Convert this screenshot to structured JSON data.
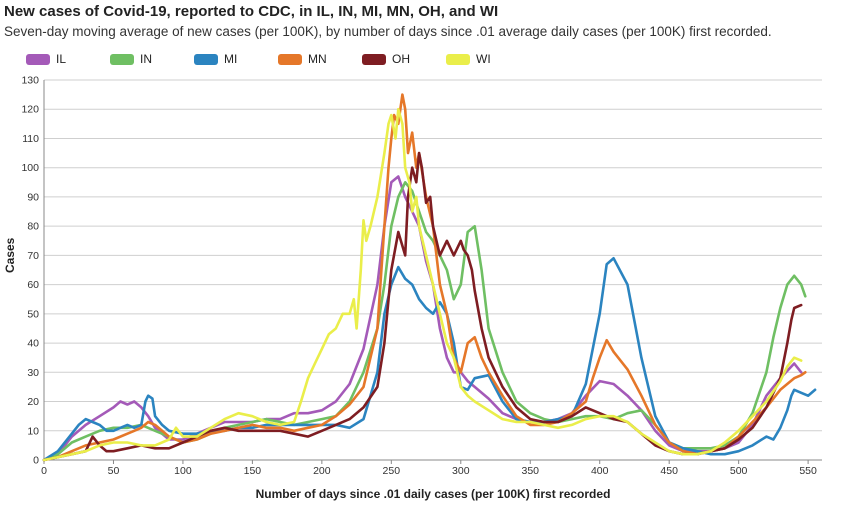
{
  "chart_data": {
    "type": "line",
    "title": "New cases of Covid-19, reported to CDC, in IL, IN, MI, MN, OH, and WI",
    "subtitle": "Seven-day moving average of new cases (per 100K), by number of days since .01 average daily cases (per 100K) first recorded.",
    "xlabel": "Number of days since .01 daily cases (per 100K) first recorded",
    "ylabel": "Cases",
    "xlim": [
      0,
      560
    ],
    "ylim": [
      0,
      130
    ],
    "xticks": [
      0,
      50,
      100,
      150,
      200,
      250,
      300,
      350,
      400,
      450,
      500,
      550
    ],
    "yticks": [
      0,
      10,
      20,
      30,
      40,
      50,
      60,
      70,
      80,
      90,
      100,
      110,
      120,
      130
    ],
    "grid": "horizontal",
    "legend_position": "top-left",
    "series": [
      {
        "name": "IL",
        "color": "#a45ab8",
        "x": [
          0,
          10,
          20,
          30,
          40,
          50,
          55,
          60,
          65,
          70,
          75,
          80,
          85,
          90,
          100,
          110,
          120,
          130,
          140,
          150,
          160,
          170,
          180,
          190,
          200,
          210,
          220,
          230,
          240,
          245,
          250,
          255,
          260,
          265,
          270,
          275,
          280,
          285,
          290,
          295,
          300,
          305,
          310,
          320,
          330,
          340,
          350,
          360,
          370,
          380,
          390,
          400,
          410,
          420,
          430,
          440,
          450,
          460,
          470,
          480,
          490,
          500,
          510,
          520,
          530,
          540,
          545
        ],
        "y": [
          0,
          2,
          8,
          12,
          15,
          18,
          20,
          19,
          20,
          18,
          15,
          11,
          9,
          7,
          7,
          9,
          11,
          13,
          13,
          13,
          14,
          14,
          16,
          16,
          17,
          20,
          26,
          38,
          60,
          80,
          95,
          97,
          90,
          85,
          80,
          68,
          60,
          45,
          35,
          30,
          30,
          27,
          25,
          21,
          16,
          14,
          13,
          13,
          14,
          16,
          22,
          27,
          26,
          22,
          17,
          10,
          5,
          3,
          3,
          3,
          4,
          6,
          12,
          22,
          28,
          33,
          30
        ]
      },
      {
        "name": "IN",
        "color": "#6fbf63",
        "x": [
          0,
          10,
          20,
          30,
          40,
          50,
          60,
          70,
          80,
          90,
          100,
          110,
          120,
          130,
          140,
          150,
          160,
          170,
          180,
          190,
          200,
          210,
          220,
          230,
          240,
          245,
          250,
          255,
          260,
          265,
          270,
          275,
          280,
          285,
          290,
          295,
          300,
          305,
          310,
          315,
          320,
          330,
          340,
          350,
          360,
          370,
          380,
          390,
          400,
          410,
          420,
          430,
          440,
          450,
          460,
          470,
          480,
          490,
          500,
          510,
          520,
          525,
          530,
          535,
          540,
          545,
          548
        ],
        "y": [
          0,
          2,
          6,
          8,
          10,
          11,
          11,
          12,
          10,
          8,
          6,
          7,
          9,
          11,
          12,
          13,
          14,
          13,
          12,
          13,
          14,
          15,
          20,
          30,
          45,
          60,
          80,
          90,
          95,
          92,
          85,
          78,
          75,
          70,
          65,
          55,
          60,
          78,
          80,
          65,
          45,
          30,
          20,
          16,
          14,
          13,
          14,
          15,
          15,
          14,
          16,
          17,
          12,
          6,
          4,
          4,
          4,
          5,
          8,
          16,
          30,
          42,
          52,
          60,
          63,
          60,
          56
        ]
      },
      {
        "name": "MI",
        "color": "#2b84c0",
        "x": [
          0,
          10,
          20,
          25,
          30,
          35,
          40,
          45,
          50,
          55,
          60,
          65,
          70,
          73,
          75,
          78,
          80,
          85,
          90,
          100,
          110,
          120,
          130,
          140,
          150,
          160,
          170,
          180,
          190,
          200,
          210,
          220,
          230,
          240,
          245,
          250,
          255,
          260,
          265,
          270,
          275,
          280,
          285,
          290,
          295,
          300,
          305,
          310,
          320,
          330,
          340,
          350,
          360,
          370,
          380,
          390,
          400,
          405,
          410,
          420,
          430,
          440,
          450,
          460,
          470,
          480,
          490,
          500,
          510,
          520,
          525,
          530,
          535,
          538,
          540,
          545,
          550,
          555
        ],
        "y": [
          0,
          3,
          9,
          12,
          14,
          13,
          12,
          10,
          10,
          11,
          12,
          11,
          12,
          20,
          22,
          21,
          15,
          12,
          10,
          9,
          9,
          10,
          10,
          11,
          11,
          12,
          12,
          12,
          12,
          12,
          12,
          11,
          14,
          30,
          50,
          60,
          66,
          62,
          60,
          55,
          52,
          50,
          54,
          50,
          40,
          25,
          24,
          28,
          29,
          20,
          14,
          13,
          13,
          14,
          15,
          26,
          50,
          67,
          69,
          60,
          35,
          15,
          6,
          4,
          3,
          2,
          2,
          3,
          5,
          8,
          7,
          11,
          17,
          22,
          24,
          23,
          22,
          24
        ]
      },
      {
        "name": "MN",
        "color": "#e57729",
        "x": [
          0,
          10,
          20,
          30,
          40,
          50,
          60,
          65,
          70,
          75,
          80,
          85,
          90,
          100,
          110,
          120,
          130,
          140,
          150,
          160,
          170,
          180,
          190,
          200,
          210,
          220,
          230,
          240,
          245,
          248,
          250,
          252,
          255,
          258,
          260,
          262,
          265,
          268,
          270,
          275,
          280,
          285,
          290,
          295,
          300,
          305,
          310,
          315,
          320,
          330,
          340,
          350,
          360,
          370,
          380,
          390,
          395,
          400,
          405,
          410,
          420,
          430,
          440,
          450,
          460,
          470,
          480,
          490,
          500,
          510,
          520,
          530,
          540,
          545,
          548
        ],
        "y": [
          0,
          1,
          3,
          5,
          6,
          7,
          9,
          10,
          11,
          13,
          12,
          10,
          8,
          6,
          7,
          9,
          10,
          11,
          12,
          11,
          11,
          10,
          11,
          12,
          15,
          19,
          25,
          45,
          80,
          100,
          110,
          118,
          115,
          125,
          120,
          105,
          112,
          100,
          105,
          90,
          80,
          60,
          50,
          35,
          30,
          40,
          42,
          35,
          30,
          22,
          15,
          12,
          12,
          13,
          16,
          20,
          28,
          35,
          41,
          37,
          31,
          22,
          12,
          6,
          3,
          2,
          3,
          4,
          8,
          13,
          18,
          24,
          28,
          29,
          30
        ]
      },
      {
        "name": "OH",
        "color": "#7e1d22",
        "x": [
          0,
          10,
          20,
          30,
          35,
          40,
          45,
          50,
          60,
          70,
          80,
          90,
          100,
          110,
          120,
          130,
          140,
          150,
          160,
          170,
          180,
          190,
          200,
          210,
          220,
          230,
          240,
          245,
          250,
          255,
          260,
          262,
          265,
          268,
          270,
          272,
          275,
          278,
          280,
          285,
          290,
          295,
          300,
          302,
          305,
          308,
          310,
          315,
          320,
          330,
          340,
          350,
          360,
          370,
          380,
          390,
          400,
          410,
          420,
          430,
          440,
          450,
          460,
          470,
          480,
          490,
          500,
          510,
          520,
          530,
          535,
          538,
          540,
          545
        ],
        "y": [
          0,
          1,
          2,
          3,
          8,
          5,
          3,
          3,
          4,
          5,
          4,
          4,
          6,
          8,
          10,
          11,
          10,
          10,
          10,
          10,
          9,
          8,
          10,
          12,
          14,
          18,
          25,
          40,
          65,
          78,
          70,
          90,
          100,
          95,
          105,
          100,
          88,
          90,
          80,
          70,
          75,
          70,
          75,
          72,
          70,
          65,
          58,
          45,
          35,
          25,
          18,
          14,
          13,
          13,
          15,
          18,
          16,
          14,
          13,
          9,
          5,
          3,
          2,
          2,
          3,
          4,
          7,
          11,
          18,
          28,
          40,
          48,
          52,
          53
        ]
      },
      {
        "name": "WI",
        "color": "#eaee4a",
        "x": [
          0,
          10,
          20,
          30,
          40,
          50,
          60,
          70,
          80,
          90,
          95,
          100,
          110,
          120,
          130,
          140,
          150,
          160,
          170,
          180,
          185,
          190,
          195,
          200,
          205,
          210,
          215,
          220,
          223,
          225,
          228,
          230,
          232,
          235,
          240,
          245,
          248,
          250,
          253,
          255,
          258,
          260,
          263,
          265,
          268,
          270,
          275,
          280,
          285,
          290,
          295,
          300,
          305,
          310,
          320,
          330,
          340,
          350,
          360,
          370,
          380,
          390,
          400,
          410,
          420,
          430,
          440,
          450,
          460,
          470,
          480,
          490,
          500,
          510,
          520,
          530,
          535,
          540,
          545
        ],
        "y": [
          0,
          1,
          2,
          3,
          5,
          6,
          6,
          5,
          5,
          7,
          11,
          8,
          8,
          11,
          14,
          16,
          15,
          13,
          12,
          13,
          20,
          28,
          33,
          38,
          43,
          45,
          50,
          50,
          55,
          45,
          65,
          82,
          75,
          80,
          90,
          105,
          115,
          118,
          110,
          120,
          115,
          100,
          95,
          85,
          90,
          80,
          70,
          60,
          50,
          40,
          35,
          25,
          22,
          20,
          17,
          14,
          13,
          13,
          12,
          11,
          12,
          14,
          15,
          15,
          13,
          9,
          6,
          3,
          2,
          2,
          3,
          6,
          10,
          15,
          20,
          27,
          32,
          35,
          34
        ]
      }
    ]
  }
}
